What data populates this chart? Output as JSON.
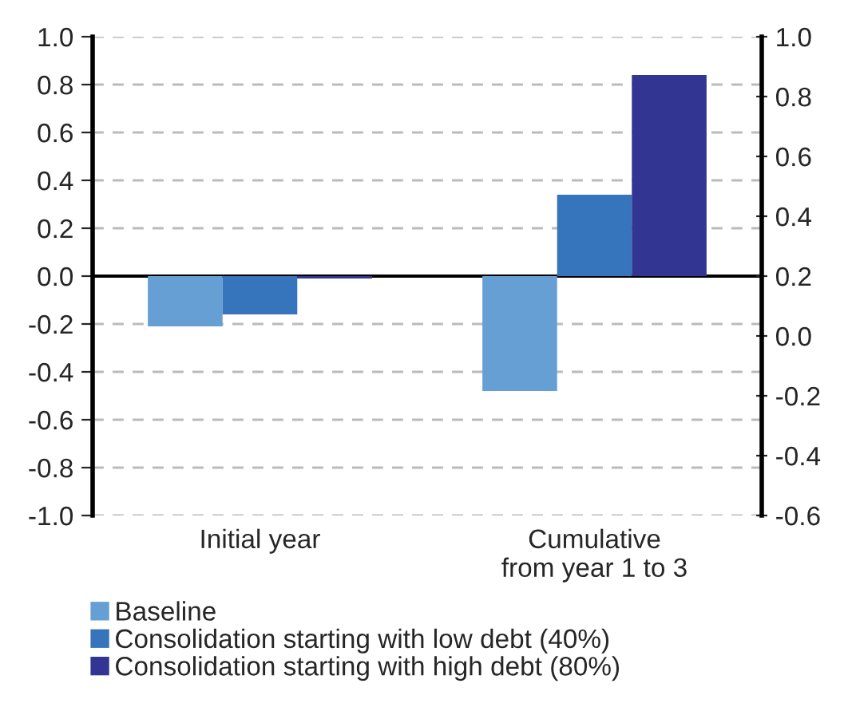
{
  "chart_data": {
    "type": "bar",
    "categories": [
      "Initial year",
      "Cumulative\nfrom year 1 to 3"
    ],
    "series": [
      {
        "name": "Baseline",
        "color": "#659fd4",
        "values": [
          -0.21,
          -0.48
        ]
      },
      {
        "name": "Consolidation starting with low debt (40%)",
        "color": "#3674bb",
        "values": [
          -0.16,
          0.34
        ]
      },
      {
        "name": "Consolidation starting with high debt (80%)",
        "color": "#323591",
        "values": [
          -0.01,
          0.84
        ]
      }
    ],
    "ylim": [
      -1.0,
      1.0
    ],
    "yticks": [
      {
        "value": -1.0,
        "label": "-1.0"
      },
      {
        "value": -0.8,
        "label": "-0.8"
      },
      {
        "value": -0.6,
        "label": "-0.6"
      },
      {
        "value": -0.4,
        "label": "-0.4"
      },
      {
        "value": -0.2,
        "label": "-0.2"
      },
      {
        "value": 0.0,
        "label": "0.0"
      },
      {
        "value": 0.2,
        "label": "0.2"
      },
      {
        "value": 0.4,
        "label": "0.4"
      },
      {
        "value": 0.6,
        "label": "0.6"
      },
      {
        "value": 0.8,
        "label": "0.8"
      },
      {
        "value": 1.0,
        "label": "1.0"
      }
    ],
    "y2lim": [
      -0.6,
      1.0
    ],
    "y2ticks": [
      {
        "value": -0.6,
        "label": "-0.6"
      },
      {
        "value": -0.4,
        "label": "-0.4"
      },
      {
        "value": -0.2,
        "label": "-0.2"
      },
      {
        "value": 0.0,
        "label": "0.0"
      },
      {
        "value": 0.2,
        "label": "0.2"
      },
      {
        "value": 0.4,
        "label": "0.4"
      },
      {
        "value": 0.6,
        "label": "0.6"
      },
      {
        "value": 0.8,
        "label": "0.8"
      },
      {
        "value": 1.0,
        "label": "1.0"
      }
    ],
    "ref_lines": [
      {
        "axis": "y",
        "value": 0,
        "color": "#000000",
        "line_style": "solid"
      }
    ],
    "grid": "y",
    "legend": "bottom"
  }
}
